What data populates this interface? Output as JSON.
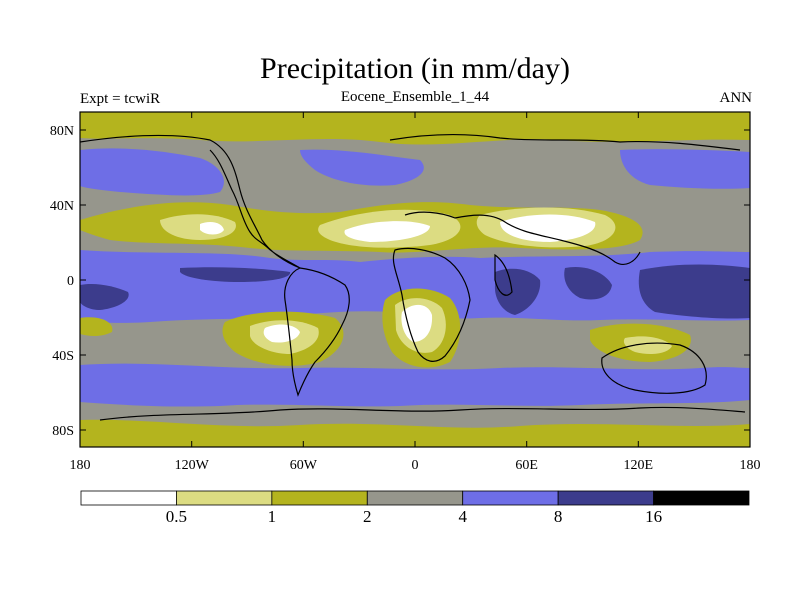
{
  "title": "Precipitation (in mm/day)",
  "subtitle": "Eocene_Ensemble_1_44",
  "left_label": "Expt = tcwiR",
  "right_label": "ANN",
  "lat_ticks": [
    "80N",
    "40N",
    "0",
    "40S",
    "80S"
  ],
  "lon_ticks": [
    "180",
    "120W",
    "60W",
    "0",
    "60E",
    "120E",
    "180"
  ],
  "colorbar": {
    "colors": [
      "#ffffff",
      "#dcdc82",
      "#b4b41e",
      "#96968c",
      "#6e6ee6",
      "#3c3c8c",
      "#000000"
    ],
    "labels": [
      "0.5",
      "1",
      "2",
      "4",
      "8",
      "16"
    ]
  }
}
